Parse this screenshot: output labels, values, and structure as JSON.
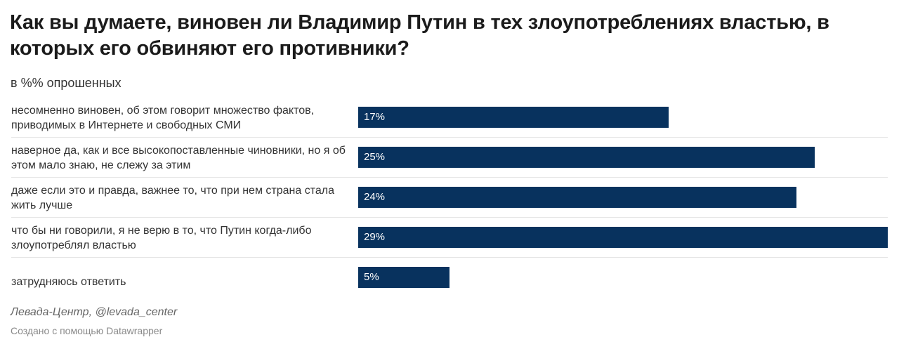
{
  "title": "Как вы думаете, виновен ли Владимир Путин в тех злоупотреблениях властью, в которых его обвиняют его противники?",
  "subtitle": "в %% опрошенных",
  "source": "Левада-Центр, @levada_center",
  "credit": "Создано с помощью Datawrapper",
  "chart_data": {
    "type": "bar",
    "orientation": "horizontal",
    "categories": [
      "несомненно виновен, об этом говорит множество фактов, приводимых в Интернете и свободных СМИ",
      "наверное да, как и все высокопоставленные чиновники, но я об этом мало знаю, не слежу за этим",
      "даже если это и правда, важнее то, что при нем страна стала жить лучше",
      "что бы ни говорили, я не верю в то, что Путин когда-либо злоупотреблял властью",
      "затрудняюсь ответить"
    ],
    "values": [
      17,
      25,
      24,
      29,
      5
    ],
    "value_labels": [
      "17%",
      "25%",
      "24%",
      "29%",
      "5%"
    ],
    "unit": "%",
    "xlim": [
      0,
      29
    ],
    "bar_color": "#08325e",
    "grid": false,
    "legend": "none"
  }
}
